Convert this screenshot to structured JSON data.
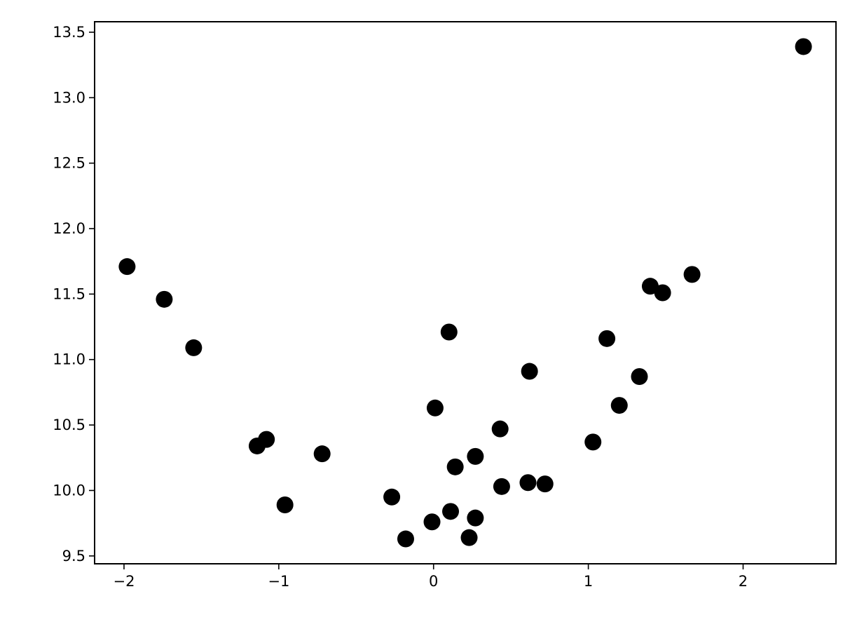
{
  "chart_data": {
    "type": "scatter",
    "title": "",
    "xlabel": "",
    "ylabel": "",
    "xlim": [
      -2.19,
      2.6
    ],
    "ylim": [
      9.44,
      13.58
    ],
    "grid": false,
    "marker_color": "#000000",
    "xticks": [
      -2,
      -1,
      0,
      1,
      2
    ],
    "xtick_labels": [
      "−2",
      "−1",
      "0",
      "1",
      "2"
    ],
    "yticks": [
      9.5,
      10.0,
      10.5,
      11.0,
      11.5,
      12.0,
      12.5,
      13.0,
      13.5
    ],
    "ytick_labels": [
      "9.5",
      "10.0",
      "10.5",
      "11.0",
      "11.5",
      "12.0",
      "12.5",
      "13.0",
      "13.5"
    ],
    "points": [
      {
        "x": -1.98,
        "y": 11.71
      },
      {
        "x": -1.74,
        "y": 11.46
      },
      {
        "x": -1.55,
        "y": 11.09
      },
      {
        "x": -1.14,
        "y": 10.34
      },
      {
        "x": -1.08,
        "y": 10.39
      },
      {
        "x": -0.96,
        "y": 9.89
      },
      {
        "x": -0.72,
        "y": 10.28
      },
      {
        "x": -0.27,
        "y": 9.95
      },
      {
        "x": -0.18,
        "y": 9.63
      },
      {
        "x": -0.01,
        "y": 9.76
      },
      {
        "x": 0.01,
        "y": 10.63
      },
      {
        "x": 0.1,
        "y": 11.21
      },
      {
        "x": 0.11,
        "y": 9.84
      },
      {
        "x": 0.14,
        "y": 10.18
      },
      {
        "x": 0.23,
        "y": 9.64
      },
      {
        "x": 0.27,
        "y": 9.79
      },
      {
        "x": 0.27,
        "y": 10.26
      },
      {
        "x": 0.43,
        "y": 10.47
      },
      {
        "x": 0.44,
        "y": 10.03
      },
      {
        "x": 0.61,
        "y": 10.06
      },
      {
        "x": 0.62,
        "y": 10.91
      },
      {
        "x": 0.72,
        "y": 10.05
      },
      {
        "x": 1.03,
        "y": 10.37
      },
      {
        "x": 1.12,
        "y": 11.16
      },
      {
        "x": 1.2,
        "y": 10.65
      },
      {
        "x": 1.33,
        "y": 10.87
      },
      {
        "x": 1.4,
        "y": 11.56
      },
      {
        "x": 1.48,
        "y": 11.51
      },
      {
        "x": 1.67,
        "y": 11.65
      },
      {
        "x": 2.39,
        "y": 13.39
      }
    ]
  }
}
